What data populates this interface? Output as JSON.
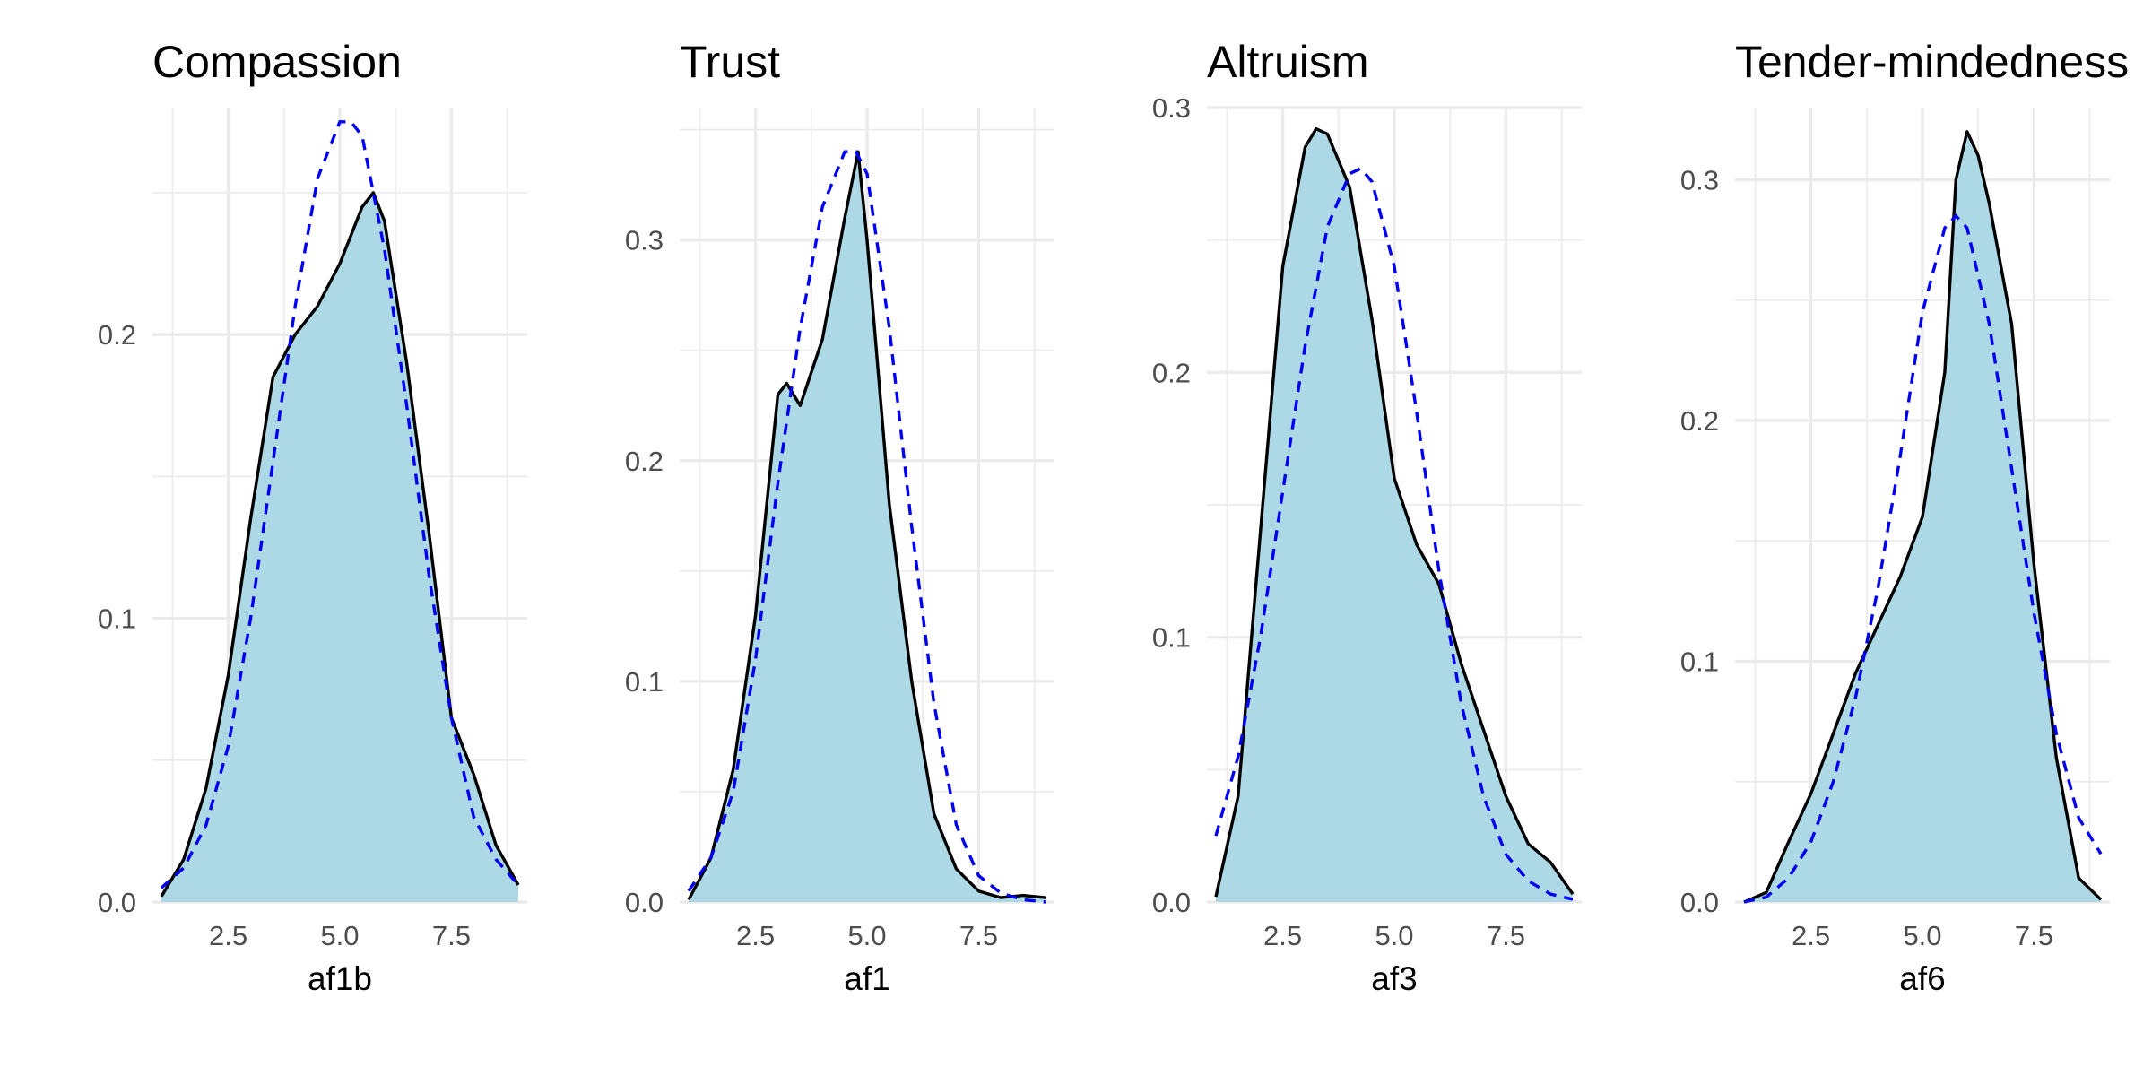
{
  "colors": {
    "fill": "#add8e6",
    "line": "#000000",
    "normal": "#0000ee",
    "grid": "#ebebeb",
    "tick_text": "#4d4d4d"
  },
  "chart_data": [
    {
      "type": "area",
      "title": "Compassion",
      "xlabel": "af1b",
      "ylabel": "",
      "xlim": [
        0.8,
        9.2
      ],
      "ylim": [
        0,
        0.28
      ],
      "x_ticks": [
        2.5,
        5.0,
        7.5
      ],
      "x_tick_labels": [
        "2.5",
        "5.0",
        "7.5"
      ],
      "y_ticks": [
        0.0,
        0.1,
        0.2
      ],
      "y_tick_labels": [
        "0.0",
        "0.1",
        "0.2"
      ],
      "grid": true,
      "series": [
        {
          "style": "density",
          "x": [
            1.0,
            1.5,
            2.0,
            2.5,
            3.0,
            3.5,
            4.0,
            4.5,
            5.0,
            5.5,
            5.75,
            6.0,
            6.5,
            7.0,
            7.5,
            7.75,
            8.0,
            8.5,
            9.0
          ],
          "y": [
            0.002,
            0.015,
            0.04,
            0.08,
            0.135,
            0.185,
            0.2,
            0.21,
            0.225,
            0.245,
            0.25,
            0.24,
            0.19,
            0.13,
            0.065,
            0.055,
            0.045,
            0.02,
            0.006
          ]
        },
        {
          "style": "normal",
          "x": [
            1.0,
            1.5,
            2.0,
            2.5,
            3.0,
            3.5,
            4.0,
            4.5,
            5.0,
            5.25,
            5.5,
            6.0,
            6.5,
            7.0,
            7.5,
            8.0,
            8.5,
            9.0
          ],
          "y": [
            0.005,
            0.012,
            0.027,
            0.055,
            0.1,
            0.155,
            0.21,
            0.255,
            0.275,
            0.275,
            0.27,
            0.23,
            0.175,
            0.115,
            0.065,
            0.03,
            0.015,
            0.006
          ]
        }
      ]
    },
    {
      "type": "area",
      "title": "Trust",
      "xlabel": "af1",
      "ylabel": "",
      "xlim": [
        0.8,
        9.2
      ],
      "ylim": [
        0,
        0.36
      ],
      "x_ticks": [
        2.5,
        5.0,
        7.5
      ],
      "x_tick_labels": [
        "2.5",
        "5.0",
        "7.5"
      ],
      "y_ticks": [
        0.0,
        0.1,
        0.2,
        0.3
      ],
      "y_tick_labels": [
        "0.0",
        "0.1",
        "0.2",
        "0.3"
      ],
      "grid": true,
      "series": [
        {
          "style": "density",
          "x": [
            1.0,
            1.5,
            2.0,
            2.5,
            2.8,
            3.0,
            3.2,
            3.5,
            4.0,
            4.5,
            4.8,
            5.0,
            5.5,
            6.0,
            6.5,
            7.0,
            7.5,
            8.0,
            8.5,
            9.0
          ],
          "y": [
            0.001,
            0.02,
            0.06,
            0.13,
            0.19,
            0.23,
            0.235,
            0.225,
            0.255,
            0.31,
            0.34,
            0.3,
            0.18,
            0.1,
            0.04,
            0.015,
            0.005,
            0.002,
            0.003,
            0.002
          ]
        },
        {
          "style": "normal",
          "x": [
            1.0,
            1.5,
            2.0,
            2.5,
            3.0,
            3.5,
            4.0,
            4.5,
            4.75,
            5.0,
            5.5,
            6.0,
            6.5,
            7.0,
            7.5,
            8.0,
            8.5,
            9.0
          ],
          "y": [
            0.005,
            0.02,
            0.05,
            0.11,
            0.19,
            0.26,
            0.315,
            0.34,
            0.34,
            0.33,
            0.26,
            0.17,
            0.09,
            0.035,
            0.012,
            0.004,
            0.001,
            0.0
          ]
        }
      ]
    },
    {
      "type": "area",
      "title": "Altruism",
      "xlabel": "af3",
      "ylabel": "",
      "xlim": [
        0.8,
        9.2
      ],
      "ylim": [
        0,
        0.3
      ],
      "x_ticks": [
        2.5,
        5.0,
        7.5
      ],
      "x_tick_labels": [
        "2.5",
        "5.0",
        "7.5"
      ],
      "y_ticks": [
        0.0,
        0.1,
        0.2,
        0.3
      ],
      "y_tick_labels": [
        "0.0",
        "0.1",
        "0.2",
        "0.3"
      ],
      "grid": true,
      "series": [
        {
          "style": "density",
          "x": [
            1.0,
            1.5,
            2.0,
            2.5,
            3.0,
            3.25,
            3.5,
            4.0,
            4.5,
            5.0,
            5.5,
            6.0,
            6.5,
            7.0,
            7.5,
            8.0,
            8.5,
            9.0
          ],
          "y": [
            0.002,
            0.04,
            0.14,
            0.24,
            0.285,
            0.292,
            0.29,
            0.27,
            0.22,
            0.16,
            0.135,
            0.12,
            0.09,
            0.065,
            0.04,
            0.022,
            0.015,
            0.003
          ]
        },
        {
          "style": "normal",
          "x": [
            1.0,
            1.5,
            2.0,
            2.5,
            3.0,
            3.5,
            4.0,
            4.25,
            4.5,
            5.0,
            5.5,
            6.0,
            6.5,
            7.0,
            7.5,
            8.0,
            8.5,
            9.0
          ],
          "y": [
            0.025,
            0.055,
            0.1,
            0.155,
            0.21,
            0.255,
            0.275,
            0.277,
            0.272,
            0.24,
            0.185,
            0.125,
            0.075,
            0.04,
            0.018,
            0.008,
            0.003,
            0.001
          ]
        }
      ]
    },
    {
      "type": "area",
      "title": "Tender-mindedness",
      "xlabel": "af6",
      "ylabel": "",
      "xlim": [
        0.8,
        9.2
      ],
      "ylim": [
        0,
        0.33
      ],
      "x_ticks": [
        2.5,
        5.0,
        7.5
      ],
      "x_tick_labels": [
        "2.5",
        "5.0",
        "7.5"
      ],
      "y_ticks": [
        0.0,
        0.1,
        0.2,
        0.3
      ],
      "y_tick_labels": [
        "0.0",
        "0.1",
        "0.2",
        "0.3"
      ],
      "grid": true,
      "series": [
        {
          "style": "density",
          "x": [
            1.0,
            1.5,
            2.0,
            2.5,
            3.0,
            3.5,
            4.0,
            4.5,
            5.0,
            5.5,
            5.75,
            6.0,
            6.25,
            6.5,
            7.0,
            7.5,
            8.0,
            8.5,
            9.0
          ],
          "y": [
            0.0,
            0.004,
            0.025,
            0.045,
            0.07,
            0.095,
            0.115,
            0.135,
            0.16,
            0.22,
            0.3,
            0.32,
            0.31,
            0.29,
            0.24,
            0.14,
            0.06,
            0.01,
            0.001
          ]
        },
        {
          "style": "normal",
          "x": [
            1.0,
            1.5,
            2.0,
            2.5,
            3.0,
            3.5,
            4.0,
            4.5,
            5.0,
            5.5,
            5.75,
            6.0,
            6.5,
            7.0,
            7.5,
            8.0,
            8.5,
            9.0
          ],
          "y": [
            0.0,
            0.002,
            0.01,
            0.025,
            0.05,
            0.085,
            0.13,
            0.185,
            0.245,
            0.28,
            0.285,
            0.28,
            0.24,
            0.18,
            0.12,
            0.07,
            0.035,
            0.02
          ]
        }
      ]
    }
  ]
}
